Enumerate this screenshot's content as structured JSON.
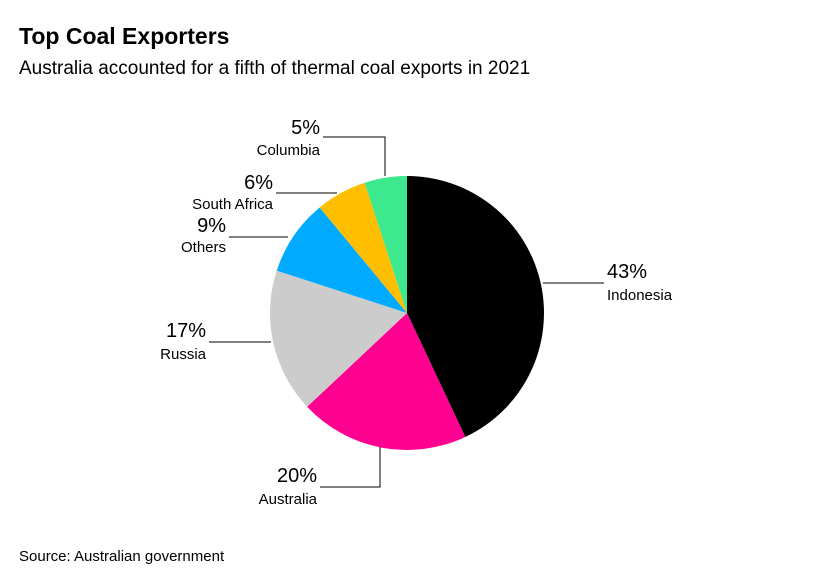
{
  "header": {
    "title": "Top Coal Exporters",
    "subtitle": "Australia accounted for a fifth of thermal coal exports in 2021"
  },
  "footer": {
    "source": "Source: Australian government"
  },
  "chart_data": {
    "type": "pie",
    "title": "Top Coal Exporters",
    "subtitle": "Australia accounted for a fifth of thermal coal exports in 2021",
    "unit": "%",
    "slices": [
      {
        "label": "Indonesia",
        "value": 43,
        "value_label": "43%",
        "color": "#000000"
      },
      {
        "label": "Australia",
        "value": 20,
        "value_label": "20%",
        "color": "#ff0090"
      },
      {
        "label": "Russia",
        "value": 17,
        "value_label": "17%",
        "color": "#cccccc"
      },
      {
        "label": "Others",
        "value": 9,
        "value_label": "9%",
        "color": "#00aaff"
      },
      {
        "label": "South Africa",
        "value": 6,
        "value_label": "6%",
        "color": "#ffbf00"
      },
      {
        "label": "Columbia",
        "value": 5,
        "value_label": "5%",
        "color": "#3de88f"
      }
    ],
    "start_angle": "12 o'clock",
    "direction": "clockwise",
    "legend": "none (direct labels)"
  }
}
